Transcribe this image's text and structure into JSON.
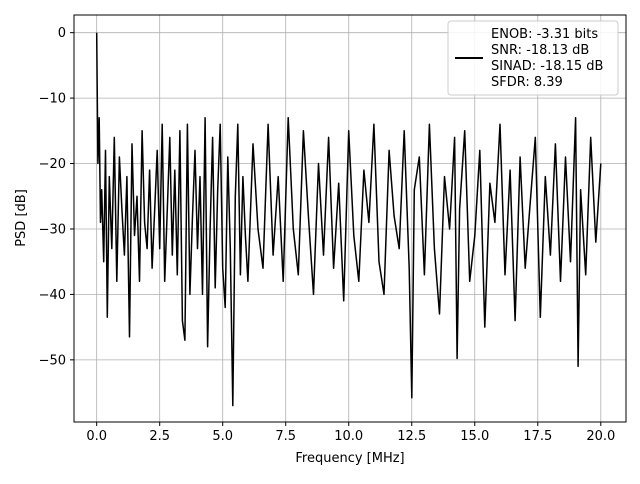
{
  "chart_data": {
    "type": "line",
    "title": "",
    "xlabel": "Frequency [MHz]",
    "ylabel": "PSD [dB]",
    "xlim": [
      -0.9,
      21.0
    ],
    "ylim": [
      -59.5,
      2.7
    ],
    "grid": true,
    "legend_position": "top-right",
    "xticks": [
      0.0,
      2.5,
      5.0,
      7.5,
      10.0,
      12.5,
      15.0,
      17.5,
      20.0
    ],
    "xtick_labels": [
      "0.0",
      "2.5",
      "5.0",
      "7.5",
      "10.0",
      "12.5",
      "15.0",
      "17.5",
      "20.0"
    ],
    "yticks": [
      0,
      -10,
      -20,
      -30,
      -40,
      -50
    ],
    "ytick_labels": [
      "0",
      "−10",
      "−20",
      "−30",
      "−40",
      "−50"
    ],
    "series": [
      {
        "name": "ENOB: -3.31 bits\nSNR: -18.13 dB\nSINAD: -18.15 dB\nSFDR: 8.39",
        "legend_lines": [
          "ENOB: -3.31 bits",
          "SNR: -18.13 dB",
          "SINAD: -18.15 dB",
          "SFDR: 8.39"
        ],
        "color": "#000000",
        "description_of_shape": "dense noise floor between about -15 and -35 dB across 0-20 MHz",
        "x": [
          0.0,
          0.02,
          0.05,
          0.1,
          0.15,
          0.2,
          0.28,
          0.35,
          0.42,
          0.5,
          0.6,
          0.7,
          0.8,
          0.9,
          1.0,
          1.1,
          1.2,
          1.3,
          1.4,
          1.5,
          1.6,
          1.7,
          1.8,
          1.9,
          2.0,
          2.1,
          2.2,
          2.3,
          2.4,
          2.5,
          2.6,
          2.7,
          2.8,
          2.9,
          3.0,
          3.1,
          3.2,
          3.3,
          3.4,
          3.5,
          3.6,
          3.7,
          3.8,
          3.9,
          4.0,
          4.1,
          4.2,
          4.3,
          4.4,
          4.5,
          4.6,
          4.7,
          4.8,
          4.9,
          5.0,
          5.1,
          5.2,
          5.3,
          5.4,
          5.5,
          5.6,
          5.7,
          5.8,
          5.9,
          6.0,
          6.2,
          6.4,
          6.6,
          6.8,
          7.0,
          7.2,
          7.4,
          7.6,
          7.8,
          8.0,
          8.2,
          8.4,
          8.6,
          8.8,
          9.0,
          9.2,
          9.4,
          9.6,
          9.8,
          10.0,
          10.2,
          10.4,
          10.6,
          10.8,
          11.0,
          11.2,
          11.4,
          11.6,
          11.8,
          12.0,
          12.2,
          12.4,
          12.5,
          12.6,
          12.8,
          13.0,
          13.2,
          13.4,
          13.6,
          13.8,
          14.0,
          14.2,
          14.3,
          14.4,
          14.6,
          14.8,
          15.0,
          15.2,
          15.4,
          15.6,
          15.8,
          16.0,
          16.2,
          16.4,
          16.6,
          16.8,
          17.0,
          17.2,
          17.4,
          17.6,
          17.8,
          18.0,
          18.2,
          18.4,
          18.6,
          18.8,
          19.0,
          19.1,
          19.2,
          19.4,
          19.6,
          19.8,
          20.0
        ],
        "y": [
          0,
          -8.5,
          -20,
          -13,
          -29,
          -24,
          -35,
          -18,
          -43.5,
          -22,
          -33,
          -16,
          -38,
          -19,
          -27,
          -34,
          -22,
          -46.5,
          -17,
          -31,
          -25,
          -38,
          -15,
          -29,
          -33,
          -21,
          -36,
          -27,
          -18,
          -33,
          -14,
          -38,
          -27,
          -16,
          -34,
          -21,
          -37,
          -15,
          -44,
          -47,
          -14,
          -40,
          -28,
          -18,
          -33,
          -22,
          -40,
          -13,
          -48,
          -30,
          -16,
          -39,
          -24,
          -14,
          -36,
          -42,
          -19,
          -33,
          -57,
          -25,
          -14,
          -37,
          -22,
          -31,
          -38,
          -17,
          -30,
          -36,
          -14,
          -34,
          -22,
          -38,
          -13,
          -30,
          -37,
          -15,
          -28,
          -40,
          -20,
          -34,
          -16,
          -36,
          -23,
          -41,
          -15,
          -31,
          -38,
          -21,
          -29,
          -14,
          -35,
          -40,
          -18,
          -28,
          -33,
          -15,
          -36,
          -55.8,
          -24,
          -19,
          -37,
          -14,
          -33,
          -43,
          -22,
          -30,
          -16,
          -49.8,
          -27,
          -15,
          -38,
          -31,
          -18,
          -45,
          -23,
          -29,
          -14,
          -37,
          -21,
          -44,
          -19,
          -36,
          -26,
          -16,
          -43.5,
          -22,
          -34,
          -17,
          -38,
          -19,
          -35,
          -13,
          -51,
          -24,
          -37,
          -16,
          -32,
          -20
        ]
      }
    ]
  }
}
